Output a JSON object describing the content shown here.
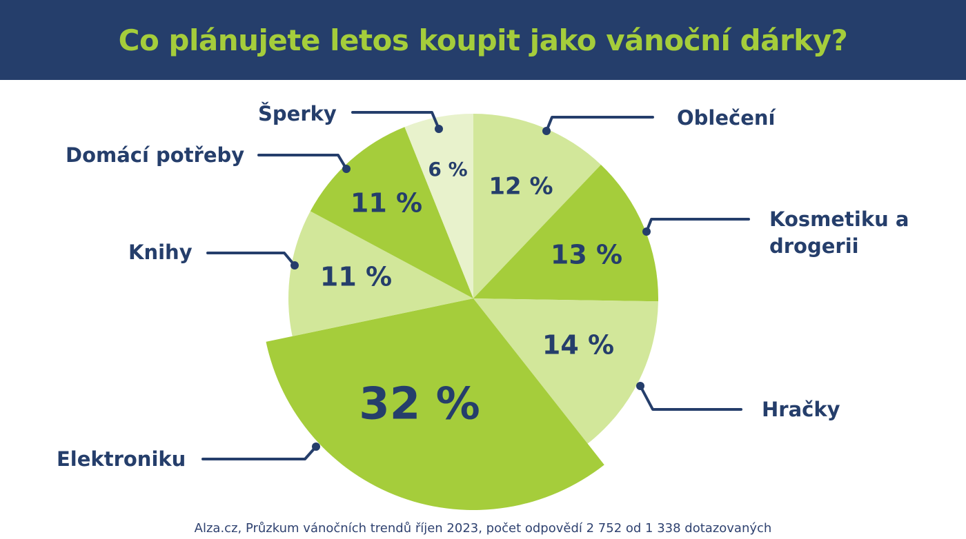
{
  "header": {
    "title": "Co plánujete letos koupit jako vánoční dárky?"
  },
  "source": "Alza.cz, Průzkum vánočních trendů říjen 2023, počet odpovědí 2 752 od 1 338 dotazovaných",
  "colors": {
    "header_bg": "#253e6b",
    "title": "#a5cd3b",
    "text": "#253e6b",
    "green_dark": "#a5cd3b",
    "green_light": "#d2e79a",
    "green_pale": "#e8f2cc"
  },
  "chart_data": {
    "type": "pie",
    "title": "Co plánujete letos koupit jako vánoční dárky?",
    "slices": [
      {
        "category": "Oblečení",
        "value": 12,
        "value_label": "12 %",
        "color": "#d2e79a"
      },
      {
        "category": "Kosmetiku a drogerii",
        "category_lines": [
          "Kosmetiku a",
          "drogerii"
        ],
        "value": 13,
        "value_label": "13 %",
        "color": "#a5cd3b"
      },
      {
        "category": "Hračky",
        "value": 14,
        "value_label": "14 %",
        "color": "#d2e79a"
      },
      {
        "category": "Elektroniku",
        "value": 32,
        "value_label": "32 %",
        "color": "#a5cd3b",
        "exploded": true
      },
      {
        "category": "Knihy",
        "value": 11,
        "value_label": "11 %",
        "color": "#d2e79a"
      },
      {
        "category": "Domácí potřeby",
        "value": 11,
        "value_label": "11 %",
        "color": "#a5cd3b"
      },
      {
        "category": "Šperky",
        "value": 6,
        "value_label": "6 %",
        "color": "#e8f2cc"
      }
    ],
    "start": "top",
    "direction": "clockwise",
    "legend": "none"
  }
}
